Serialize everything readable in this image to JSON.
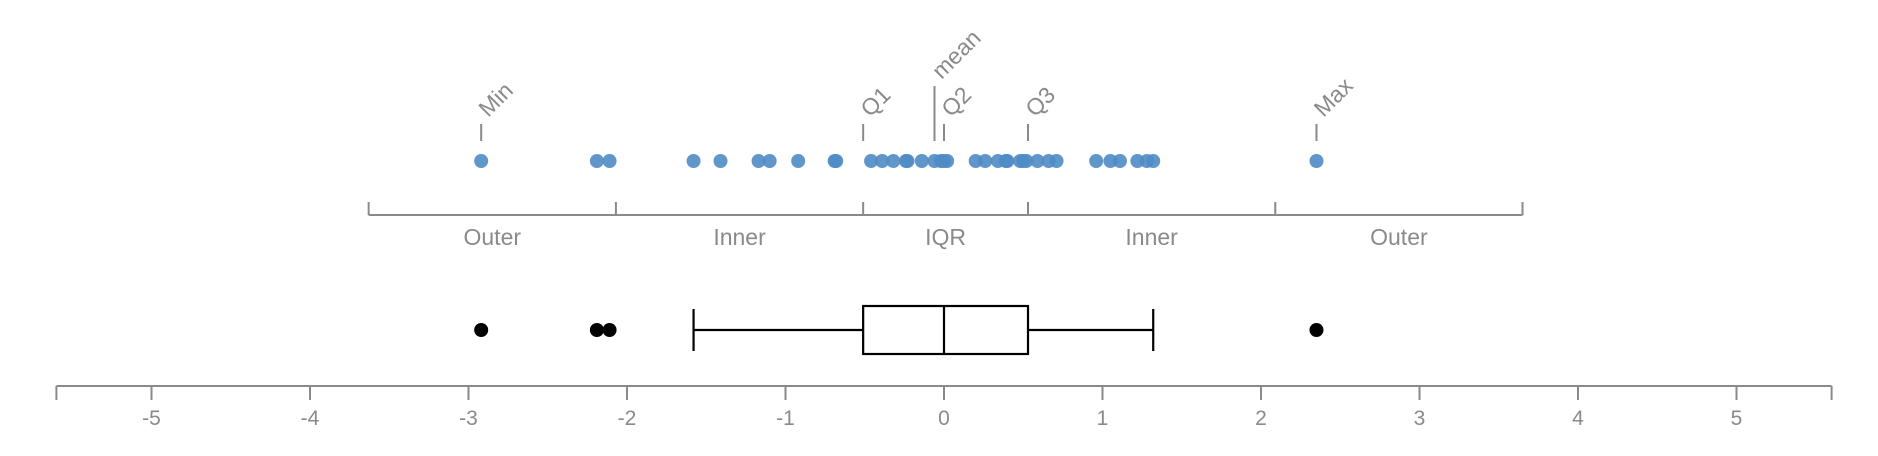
{
  "chart_data": {
    "type": "box-and-strip",
    "title": "",
    "xlabel": "",
    "ylabel": "",
    "xlim": [
      -5.6,
      5.6
    ],
    "ticks": [
      -5,
      -4,
      -3,
      -2,
      -1,
      0,
      1,
      2,
      3,
      4,
      5
    ],
    "tick_labels": [
      "-5",
      "-4",
      "-3",
      "-2",
      "-1",
      "0",
      "1",
      "2",
      "3",
      "4",
      "5"
    ],
    "points": [
      -2.92,
      -2.19,
      -2.11,
      -1.58,
      -1.41,
      -1.17,
      -1.1,
      -0.92,
      -0.69,
      -0.68,
      -0.46,
      -0.39,
      -0.32,
      -0.24,
      -0.23,
      -0.14,
      -0.06,
      -0.02,
      0.0,
      0.02,
      0.2,
      0.26,
      0.34,
      0.39,
      0.4,
      0.48,
      0.5,
      0.52,
      0.59,
      0.66,
      0.71,
      0.96,
      1.05,
      1.11,
      1.22,
      1.28,
      1.32,
      2.35
    ],
    "stats": {
      "min": -2.92,
      "q1": -0.51,
      "median": 0.0,
      "mean": -0.06,
      "q3": 0.53,
      "max": 2.35,
      "whisker_low": -1.58,
      "whisker_high": 1.32
    },
    "stat_labels": {
      "min": "Min",
      "q1": "Q1",
      "mean": "mean",
      "median": "Q2",
      "q3": "Q3",
      "max": "Max"
    },
    "fences": [
      -3.63,
      -2.07,
      -0.51,
      0.53,
      2.09,
      3.65
    ],
    "region_labels": [
      "Outer",
      "Inner",
      "IQR",
      "Inner",
      "Outer"
    ],
    "outliers": [
      -2.92,
      -2.19,
      -2.11,
      2.35
    ],
    "colors": {
      "point": "#4f8bc4",
      "axis": "#8a8a8a",
      "box": "#000000",
      "outlier": "#000000"
    }
  }
}
